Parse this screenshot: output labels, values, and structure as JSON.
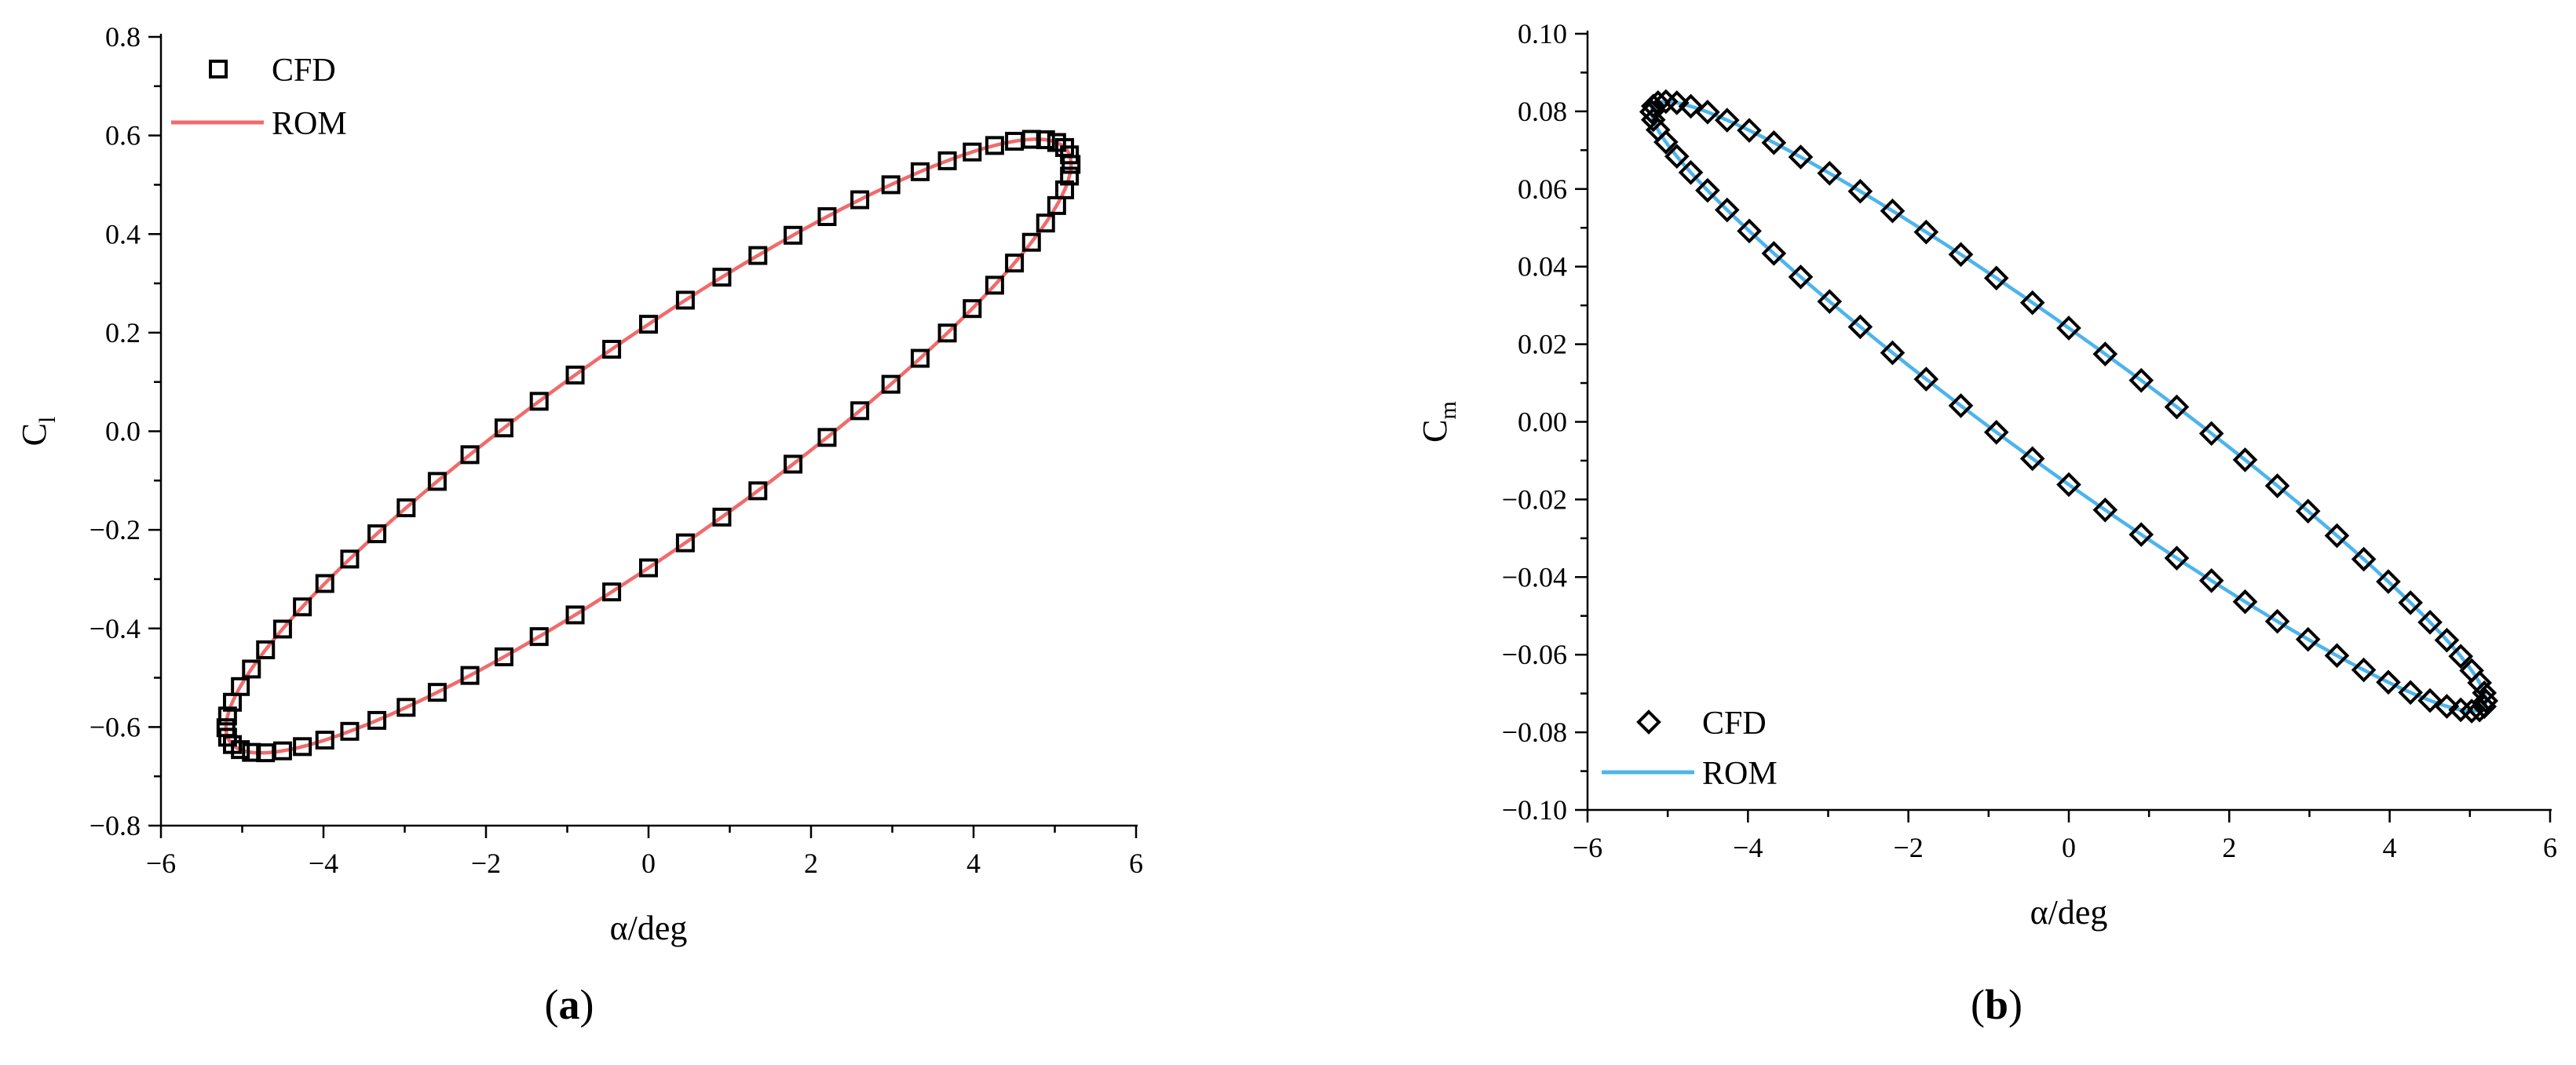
{
  "chart_data": [
    {
      "type": "line",
      "panel_label": "a",
      "xlabel": "α/deg",
      "ylabel": "C",
      "ylabel_sub": "l",
      "xlim": [
        -6,
        6
      ],
      "ylim": [
        -0.8,
        0.8
      ],
      "xticks": [
        -6,
        -4,
        -2,
        0,
        2,
        4,
        6
      ],
      "xtick_labels": [
        "−6",
        "−4",
        "−2",
        "0",
        "2",
        "4",
        "6"
      ],
      "yticks": [
        -0.8,
        -0.6,
        -0.4,
        -0.2,
        0.0,
        0.2,
        0.4,
        0.6,
        0.8
      ],
      "ytick_labels": [
        "−0.8",
        "−0.6",
        "−0.4",
        "−0.2",
        "0.0",
        "0.2",
        "0.4",
        "0.6",
        "0.8"
      ],
      "grid": false,
      "legend_position": "top-left",
      "series": [
        {
          "name": "CFD",
          "kind": "markers",
          "marker": "square",
          "color": "#000000"
        },
        {
          "name": "ROM",
          "kind": "line",
          "color": "#f06b6b"
        }
      ],
      "loop": {
        "amplitude_deg": 5.2,
        "mean": -0.03,
        "slope": 0.122,
        "hysteresis": 0.255,
        "phase_offset": 0.25,
        "samples_markers": 72,
        "samples_line": 400
      }
    },
    {
      "type": "line",
      "panel_label": "b",
      "xlabel": "α/deg",
      "ylabel": "C",
      "ylabel_sub": "m",
      "xlim": [
        -6,
        6
      ],
      "ylim": [
        -0.1,
        0.1
      ],
      "xticks": [
        -6,
        -4,
        -2,
        0,
        2,
        4,
        6
      ],
      "xtick_labels": [
        "−6",
        "−4",
        "−2",
        "0",
        "2",
        "4",
        "6"
      ],
      "yticks": [
        -0.1,
        -0.08,
        -0.06,
        -0.04,
        -0.02,
        0.0,
        0.02,
        0.04,
        0.06,
        0.08,
        0.1
      ],
      "ytick_labels": [
        "−0.10",
        "−0.08",
        "−0.06",
        "−0.04",
        "−0.02",
        "0.00",
        "0.02",
        "0.04",
        "0.06",
        "0.08",
        "0.10"
      ],
      "grid": false,
      "legend_position": "bottom-left",
      "series": [
        {
          "name": "CFD",
          "kind": "markers",
          "marker": "diamond",
          "color": "#000000"
        },
        {
          "name": "ROM",
          "kind": "line",
          "color": "#4db4ec"
        }
      ],
      "loop": {
        "amplitude_deg": 5.2,
        "mean": 0.004,
        "slope": -0.0153,
        "hysteresis": 0.0205,
        "phase_offset": -0.18,
        "samples_markers": 72,
        "samples_line": 400
      }
    }
  ]
}
